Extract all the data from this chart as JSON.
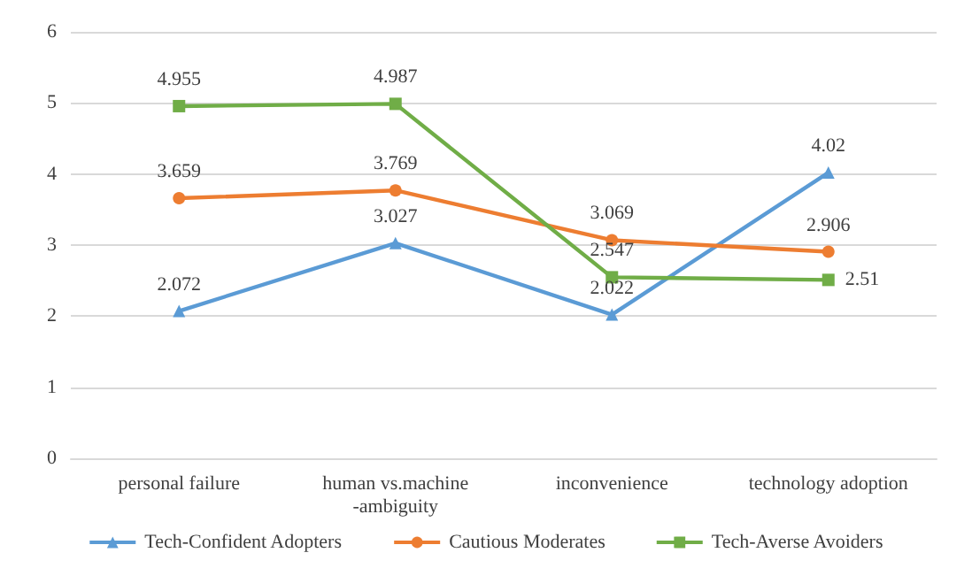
{
  "chart_data": {
    "type": "line",
    "categories": [
      "personal failure",
      "human vs.machine\n-ambiguity",
      "inconvenience",
      "technology adoption"
    ],
    "series": [
      {
        "name": "Tech-Confident Adopters",
        "color": "#5b9bd5",
        "marker": "triangle",
        "values": [
          2.072,
          3.027,
          2.022,
          4.02
        ]
      },
      {
        "name": "Cautious Moderates",
        "color": "#ed7d31",
        "marker": "circle",
        "values": [
          3.659,
          3.769,
          3.069,
          2.906
        ]
      },
      {
        "name": "Tech-Averse Avoiders",
        "color": "#70ad47",
        "marker": "square",
        "values": [
          4.955,
          4.987,
          2.547,
          2.51
        ]
      }
    ],
    "ylim": [
      0,
      6
    ],
    "yticks": [
      0,
      1,
      2,
      3,
      4,
      5,
      6
    ],
    "grid": "y",
    "legend": "bottom",
    "data_labels": true,
    "line_style": "solid"
  }
}
